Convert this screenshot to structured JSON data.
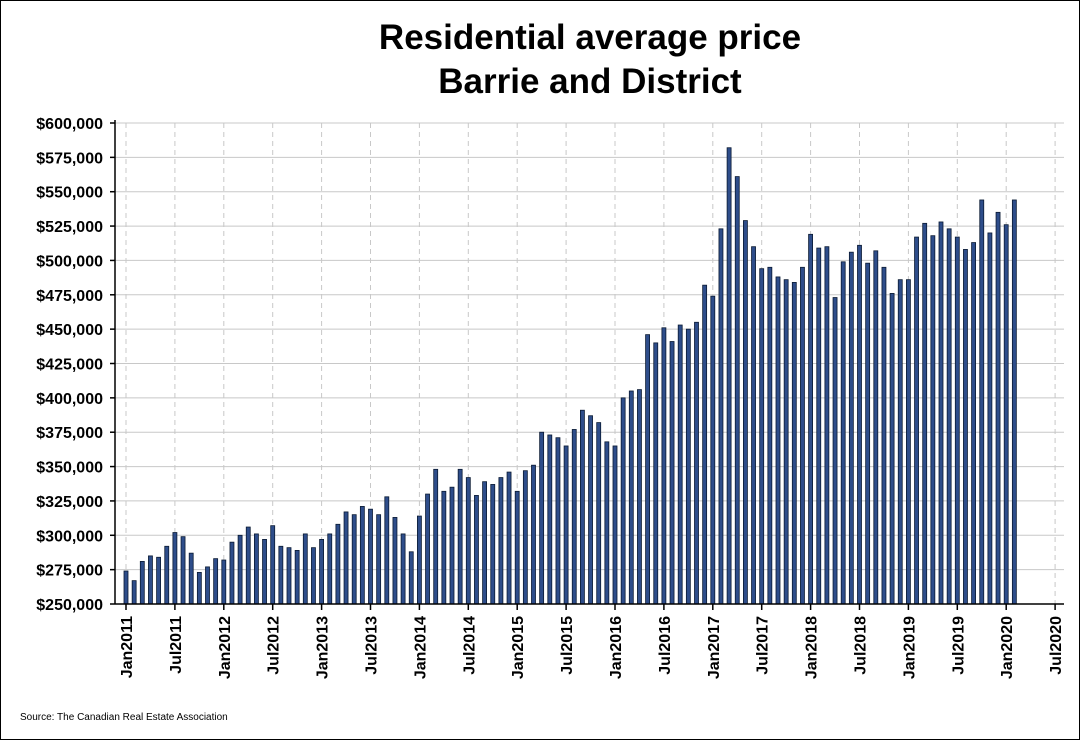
{
  "chart_data": {
    "type": "bar",
    "title_line1": "Residential average price",
    "title_line2": "Barrie and District",
    "source": "Source: The Canadian Real Estate Association",
    "ylim": [
      250000,
      600000
    ],
    "ytick_step": 25000,
    "yticks": [
      "$250,000",
      "$275,000",
      "$300,000",
      "$325,000",
      "$350,000",
      "$375,000",
      "$400,000",
      "$425,000",
      "$450,000",
      "$475,000",
      "$500,000",
      "$525,000",
      "$550,000",
      "$575,000",
      "$600,000"
    ],
    "xticks": [
      "Jan2011",
      "Jul2011",
      "Jan2012",
      "Jul2012",
      "Jan2013",
      "Jul2013",
      "Jan2014",
      "Jul2014",
      "Jan2015",
      "Jul2015",
      "Jan2016",
      "Jul2016",
      "Jan2017",
      "Jul2017",
      "Jan2018",
      "Jul2018",
      "Jan2019",
      "Jul2019",
      "Jan2020",
      "Jul2020"
    ],
    "grid": true,
    "bar_color": "#2e4d8a",
    "start_month": "Jan2011",
    "values": [
      274000,
      267000,
      281000,
      285000,
      284000,
      292000,
      302000,
      299000,
      287000,
      273000,
      277000,
      283000,
      282000,
      295000,
      300000,
      306000,
      301000,
      297000,
      307000,
      292000,
      291000,
      289000,
      301000,
      291000,
      297000,
      301000,
      308000,
      317000,
      315000,
      321000,
      319000,
      315000,
      328000,
      313000,
      301000,
      288000,
      314000,
      330000,
      348000,
      332000,
      335000,
      348000,
      342000,
      329000,
      339000,
      337000,
      342000,
      346000,
      332000,
      347000,
      351000,
      375000,
      373000,
      371000,
      365000,
      377000,
      391000,
      387000,
      382000,
      368000,
      365000,
      400000,
      405000,
      406000,
      446000,
      440000,
      451000,
      441000,
      453000,
      450000,
      455000,
      482000,
      474000,
      523000,
      582000,
      561000,
      529000,
      510000,
      494000,
      495000,
      488000,
      486000,
      484000,
      495000,
      519000,
      509000,
      510000,
      473000,
      499000,
      506000,
      511000,
      498000,
      507000,
      495000,
      476000,
      486000,
      486000,
      517000,
      527000,
      518000,
      528000,
      523000,
      517000,
      508000,
      513000,
      544000,
      520000,
      535000,
      526000,
      544000
    ]
  }
}
